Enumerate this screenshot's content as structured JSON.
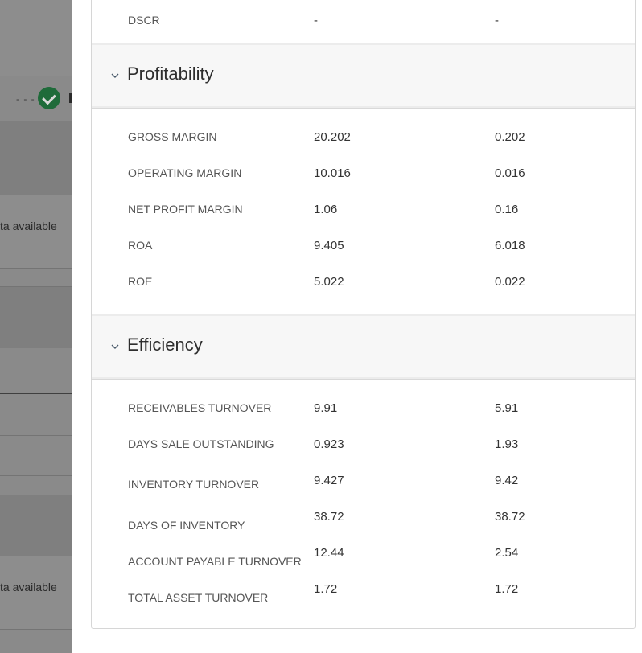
{
  "background": {
    "status_text_1": "ta available",
    "status_text_2": "ta available",
    "dashes": "- - -"
  },
  "top_row": {
    "label": "DSCR",
    "value_1": "-",
    "value_2": "-"
  },
  "sections": [
    {
      "title": "Profitability",
      "rows": [
        {
          "label": "GROSS MARGIN",
          "value_1": "20.202",
          "value_2": "0.202"
        },
        {
          "label": "OPERATING MARGIN",
          "value_1": "10.016",
          "value_2": "0.016"
        },
        {
          "label": "NET PROFIT MARGIN",
          "value_1": "1.06",
          "value_2": "0.16"
        },
        {
          "label": "ROA",
          "value_1": "9.405",
          "value_2": "6.018"
        },
        {
          "label": "ROE",
          "value_1": "5.022",
          "value_2": "0.022"
        }
      ]
    },
    {
      "title": "Efficiency",
      "rows": [
        {
          "label": "RECEIVABLES TURNOVER",
          "value_1": "9.91",
          "value_2": "5.91"
        },
        {
          "label": "DAYS SALE OUTSTANDING",
          "value_1": "0.923",
          "value_2": "1.93"
        },
        {
          "label": "INVENTORY TURNOVER",
          "value_1": "9.427",
          "value_2": "9.42"
        },
        {
          "label": "DAYS OF INVENTORY",
          "value_1": "38.72",
          "value_2": "38.72"
        },
        {
          "label": "ACCOUNT PAYABLE TURNOVER",
          "value_1": "12.44",
          "value_2": "2.54"
        },
        {
          "label": "TOTAL ASSET TURNOVER",
          "value_1": "1.72",
          "value_2": "1.72"
        }
      ]
    }
  ],
  "icons": {
    "section_toggle": "chevron-down-icon",
    "status": "check-circle-icon"
  },
  "colors": {
    "overlay": "#6f6f6f",
    "panel": "#ffffff",
    "section_header_bg": "#f7f7f7",
    "status_green": "#1f6b3a"
  }
}
